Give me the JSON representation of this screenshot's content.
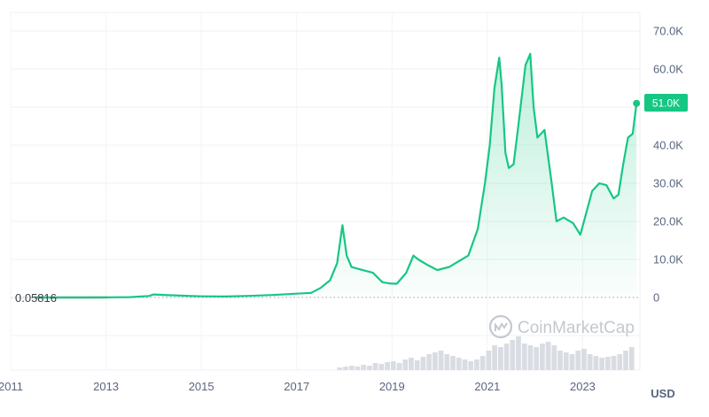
{
  "chart_data": {
    "type": "area",
    "series": [
      {
        "x": [
          2011.5,
          2012.0,
          2012.5,
          2013.0,
          2013.5,
          2013.9,
          2014.0,
          2014.3,
          2014.8,
          2015.0,
          2015.5,
          2016.0,
          2016.5,
          2017.0,
          2017.3,
          2017.5,
          2017.7,
          2017.85,
          2017.96,
          2018.05,
          2018.15,
          2018.3,
          2018.45,
          2018.6,
          2018.8,
          2018.95,
          2019.1,
          2019.3,
          2019.45,
          2019.55,
          2019.75,
          2019.95,
          2020.2,
          2020.4,
          2020.6,
          2020.8,
          2020.95,
          2021.05,
          2021.15,
          2021.25,
          2021.3,
          2021.38,
          2021.45,
          2021.55,
          2021.65,
          2021.8,
          2021.9,
          2021.97,
          2022.05,
          2022.2,
          2022.35,
          2022.45,
          2022.6,
          2022.8,
          2022.95,
          2023.05,
          2023.2,
          2023.35,
          2023.5,
          2023.65,
          2023.75,
          2023.85,
          2023.95,
          2024.05,
          2024.13
        ],
        "y": [
          0.05816,
          5,
          8,
          13,
          100,
          400,
          800,
          600,
          380,
          300,
          260,
          420,
          650,
          1000,
          1200,
          2500,
          4500,
          9000,
          19000,
          11000,
          8000,
          7500,
          7000,
          6500,
          4000,
          3700,
          3600,
          6500,
          11000,
          10000,
          8500,
          7200,
          8000,
          9500,
          11000,
          18000,
          30000,
          40000,
          55000,
          63000,
          56000,
          38000,
          34000,
          35000,
          45000,
          61000,
          64000,
          50000,
          42000,
          44000,
          30000,
          20000,
          21000,
          19500,
          16500,
          21000,
          28000,
          30000,
          29500,
          26000,
          27000,
          35000,
          42000,
          43000,
          51000
        ]
      }
    ],
    "x_ticks": [
      "2011",
      "2013",
      "2015",
      "2017",
      "2019",
      "2021",
      "2023"
    ],
    "y_ticks": [
      "70.0K",
      "60.0K",
      "50.0K",
      "40.0K",
      "30.0K",
      "20.0K",
      "10.0K",
      "0"
    ],
    "ylim": [
      0,
      70000
    ],
    "xlim": [
      2011,
      2024.2
    ],
    "start_label": "0.05816",
    "current_label": "51.0K",
    "unit_label": "USD",
    "watermark": "CoinMarketCap",
    "grid": true,
    "colors": {
      "line": "#16c784",
      "early_line": "#8b4e3c",
      "badge": "#16c784"
    },
    "volume": [
      3,
      4,
      5,
      4,
      6,
      5,
      8,
      7,
      9,
      10,
      8,
      12,
      14,
      11,
      15,
      18,
      20,
      22,
      18,
      16,
      14,
      12,
      10,
      12,
      16,
      22,
      28,
      26,
      30,
      34,
      38,
      30,
      28,
      26,
      30,
      32,
      28,
      22,
      20,
      18,
      22,
      24,
      18,
      16,
      14,
      15,
      16,
      18,
      22,
      26
    ]
  }
}
